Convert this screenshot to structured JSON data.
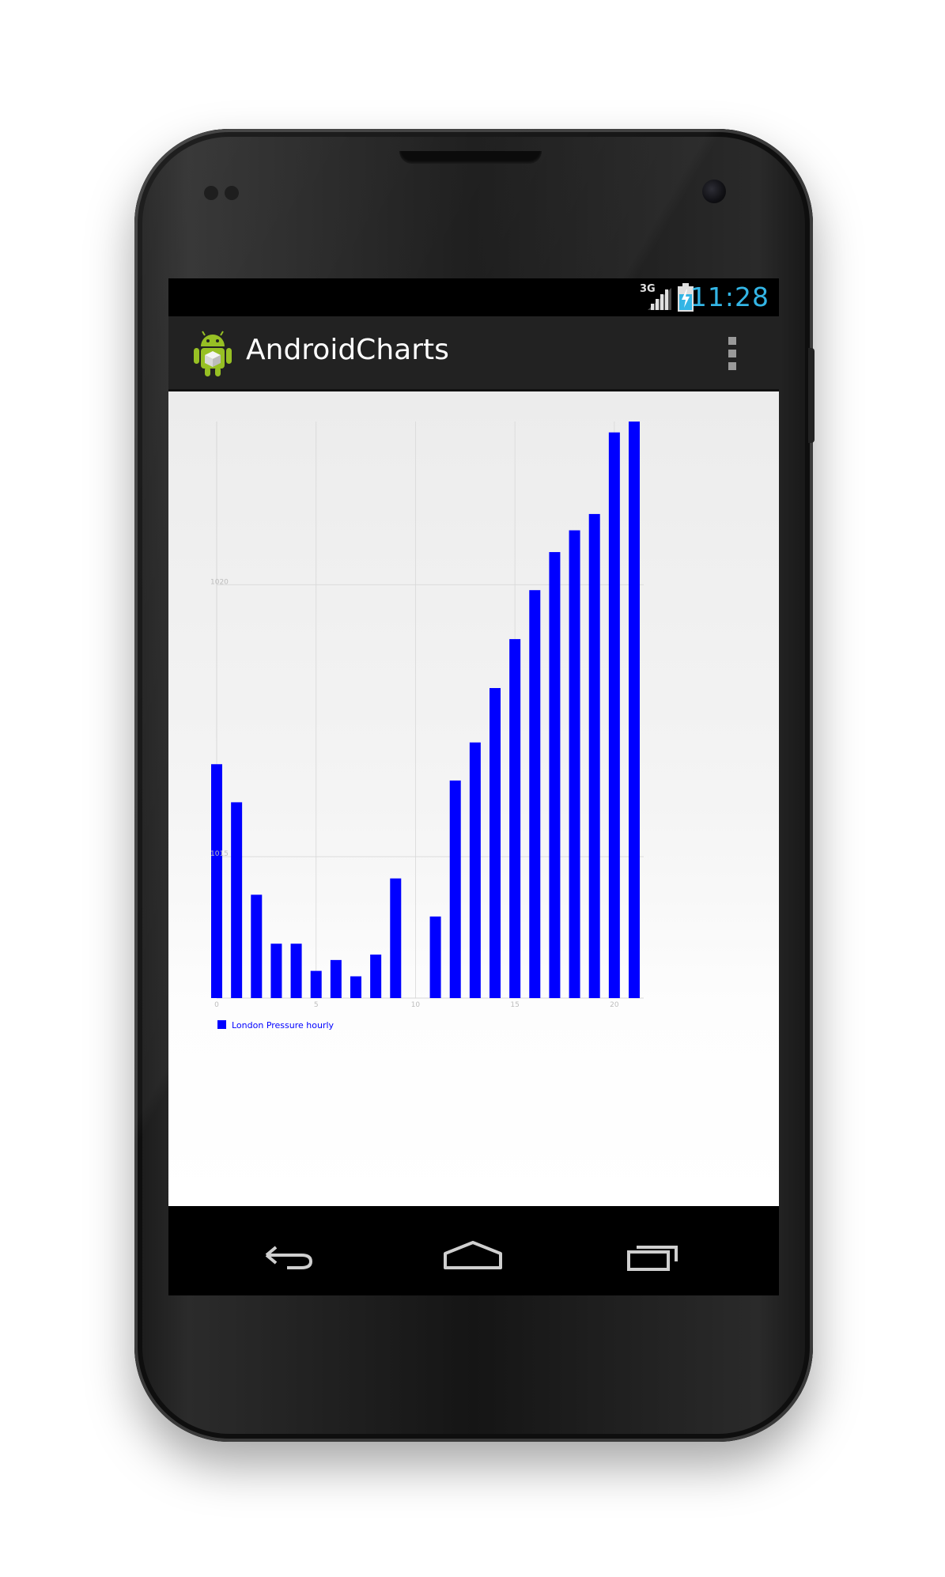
{
  "status_bar": {
    "time": "11:28",
    "network_type": "3G"
  },
  "action_bar": {
    "title": "AndroidCharts",
    "app_icon": "android-robot-icon",
    "overflow_icon": "overflow-menu-icon"
  },
  "navigation_bar": {
    "back_icon": "back-icon",
    "home_icon": "home-icon",
    "recents_icon": "recents-icon"
  },
  "colors": {
    "status_clock": "#33b5e5",
    "action_bar_bg": "#222222",
    "bar_fill": "#0000ff",
    "legend_text": "#0000ff",
    "grid": "#d8d8d8",
    "axis_text": "#bdbdbd"
  },
  "chart_data": {
    "type": "bar",
    "x": [
      0,
      1,
      2,
      3,
      4,
      5,
      6,
      7,
      8,
      9,
      10,
      11,
      12,
      13,
      14,
      15,
      16,
      17,
      18,
      19,
      20,
      21
    ],
    "series": [
      {
        "name": "London Pressure hourly",
        "values": [
          1016.7,
          1016.0,
          1014.3,
          1013.4,
          1013.4,
          1012.9,
          1013.1,
          1012.8,
          1013.2,
          1014.6,
          null,
          1013.9,
          1016.4,
          1017.1,
          1018.1,
          1019.0,
          1019.9,
          1020.6,
          1021.0,
          1021.3,
          1022.8,
          1023.0
        ]
      }
    ],
    "x_ticks": [
      0,
      5,
      10,
      15,
      20
    ],
    "x_tick_labels": [
      "0",
      "5",
      "10",
      "15",
      "20"
    ],
    "y_ticks": [
      1015,
      1020
    ],
    "y_tick_labels": [
      "1015",
      "1020"
    ],
    "xlim": [
      0,
      21
    ],
    "ylim": [
      1012.4,
      1023.0
    ],
    "grid": true,
    "legend_position": "bottom-left",
    "title": "",
    "xlabel": "",
    "ylabel": ""
  }
}
